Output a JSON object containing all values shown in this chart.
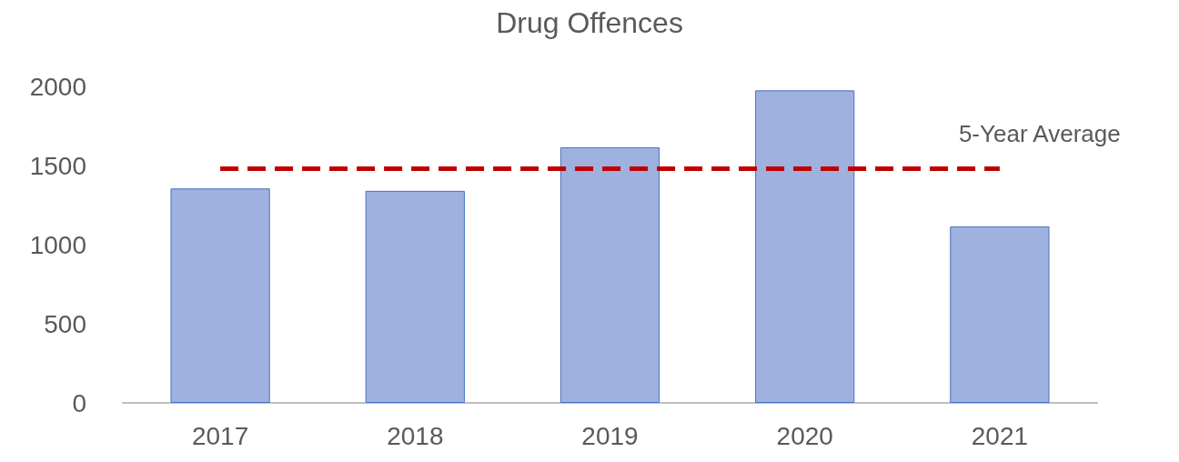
{
  "chart_data": {
    "type": "bar",
    "title": "Drug Offences",
    "categories": [
      "2017",
      "2018",
      "2019",
      "2020",
      "2021"
    ],
    "values": [
      1355,
      1340,
      1615,
      1975,
      1115
    ],
    "color": "#9fb1df",
    "ylim": [
      0,
      2000
    ],
    "yticks": [
      0,
      500,
      1000,
      1500,
      2000
    ],
    "grid": false,
    "ref_lines": [
      {
        "axis": "y",
        "value": 1480,
        "label": "5-Year Average",
        "color": "#c00000",
        "line_style": "dashed"
      }
    ]
  }
}
